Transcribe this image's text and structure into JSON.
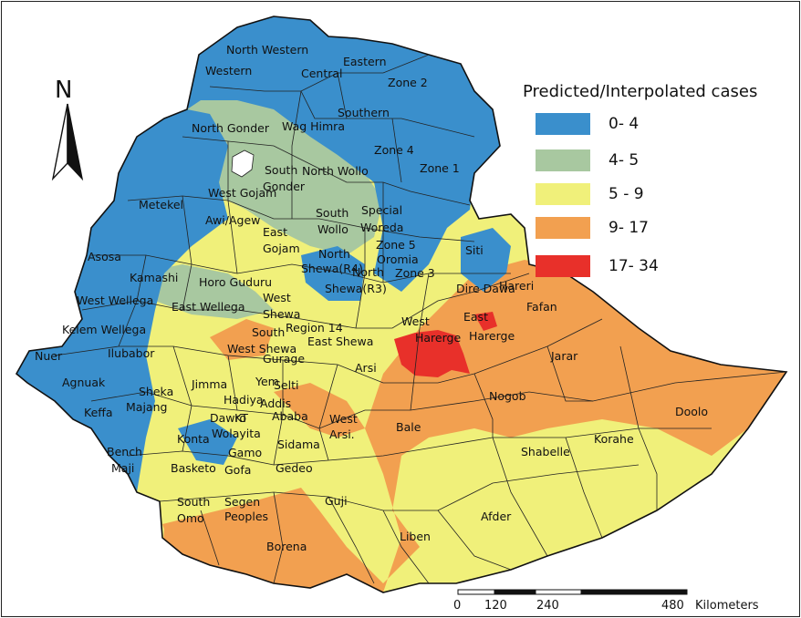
{
  "north_label": "N",
  "legend": {
    "title": "Predicted/Interpolated cases",
    "classes": [
      {
        "label": "0- 4",
        "color": "#3a8fcc"
      },
      {
        "label": "4- 5",
        "color": "#a8c8a0"
      },
      {
        "label": "5 - 9",
        "color": "#f0f07a"
      },
      {
        "label": "9- 17",
        "color": "#f2a050"
      },
      {
        "label": "17- 34",
        "color": "#e8302a"
      }
    ]
  },
  "scale_bar": {
    "ticks": [
      "0",
      "120",
      "240",
      "480"
    ],
    "unit": "Kilometers"
  },
  "regions": [
    "North Western",
    "Western",
    "Central",
    "Eastern",
    "Zone 2",
    "Southern",
    "North Gonder",
    "Wag Himra",
    "Zone 4",
    "South",
    "Gonder",
    "North Wollo",
    "Zone 1",
    "Metekel",
    "West Gojam",
    "Awi/Agew",
    "South",
    "Special",
    "Wollo",
    "Woreda",
    "East",
    "Gojam",
    "North",
    "Zone 5",
    "Oromia",
    "Asosa",
    "Shewa(R4)",
    "North",
    "Zone 3",
    "Siti",
    "Kamashi",
    "Horo Guduru",
    "Shewa(R3)",
    "Dire Dawa",
    "Hareri",
    "West Wellega",
    "East Wellega",
    "West",
    "Shewa",
    "Region 14",
    "West",
    "East",
    "Fafan",
    "Kelem Wellega",
    "South",
    "West Shewa",
    "East Shewa",
    "Harerge",
    "Harerge",
    "Nuer",
    "Ilubabor",
    "Gurage",
    "Arsi",
    "Jarar",
    "Agnuak",
    "Sheka",
    "Jimma",
    "Yem",
    "Selti",
    "Majang",
    "Hadiya",
    "Addis",
    "Ababa",
    "KT",
    "Nogob",
    "Keffa",
    "Dawro",
    "Wolayita",
    "West",
    "Arsi.",
    "Bale",
    "Doolo",
    "Konta",
    "Sidama",
    "Korahe",
    "Bench",
    "Gamo",
    "Shabelle",
    "Maji",
    "Basketo",
    "Gofa",
    "Gedeo",
    "South",
    "Segen",
    "Omo",
    "Peoples",
    "Guji",
    "Afder",
    "Liben",
    "Borena"
  ]
}
